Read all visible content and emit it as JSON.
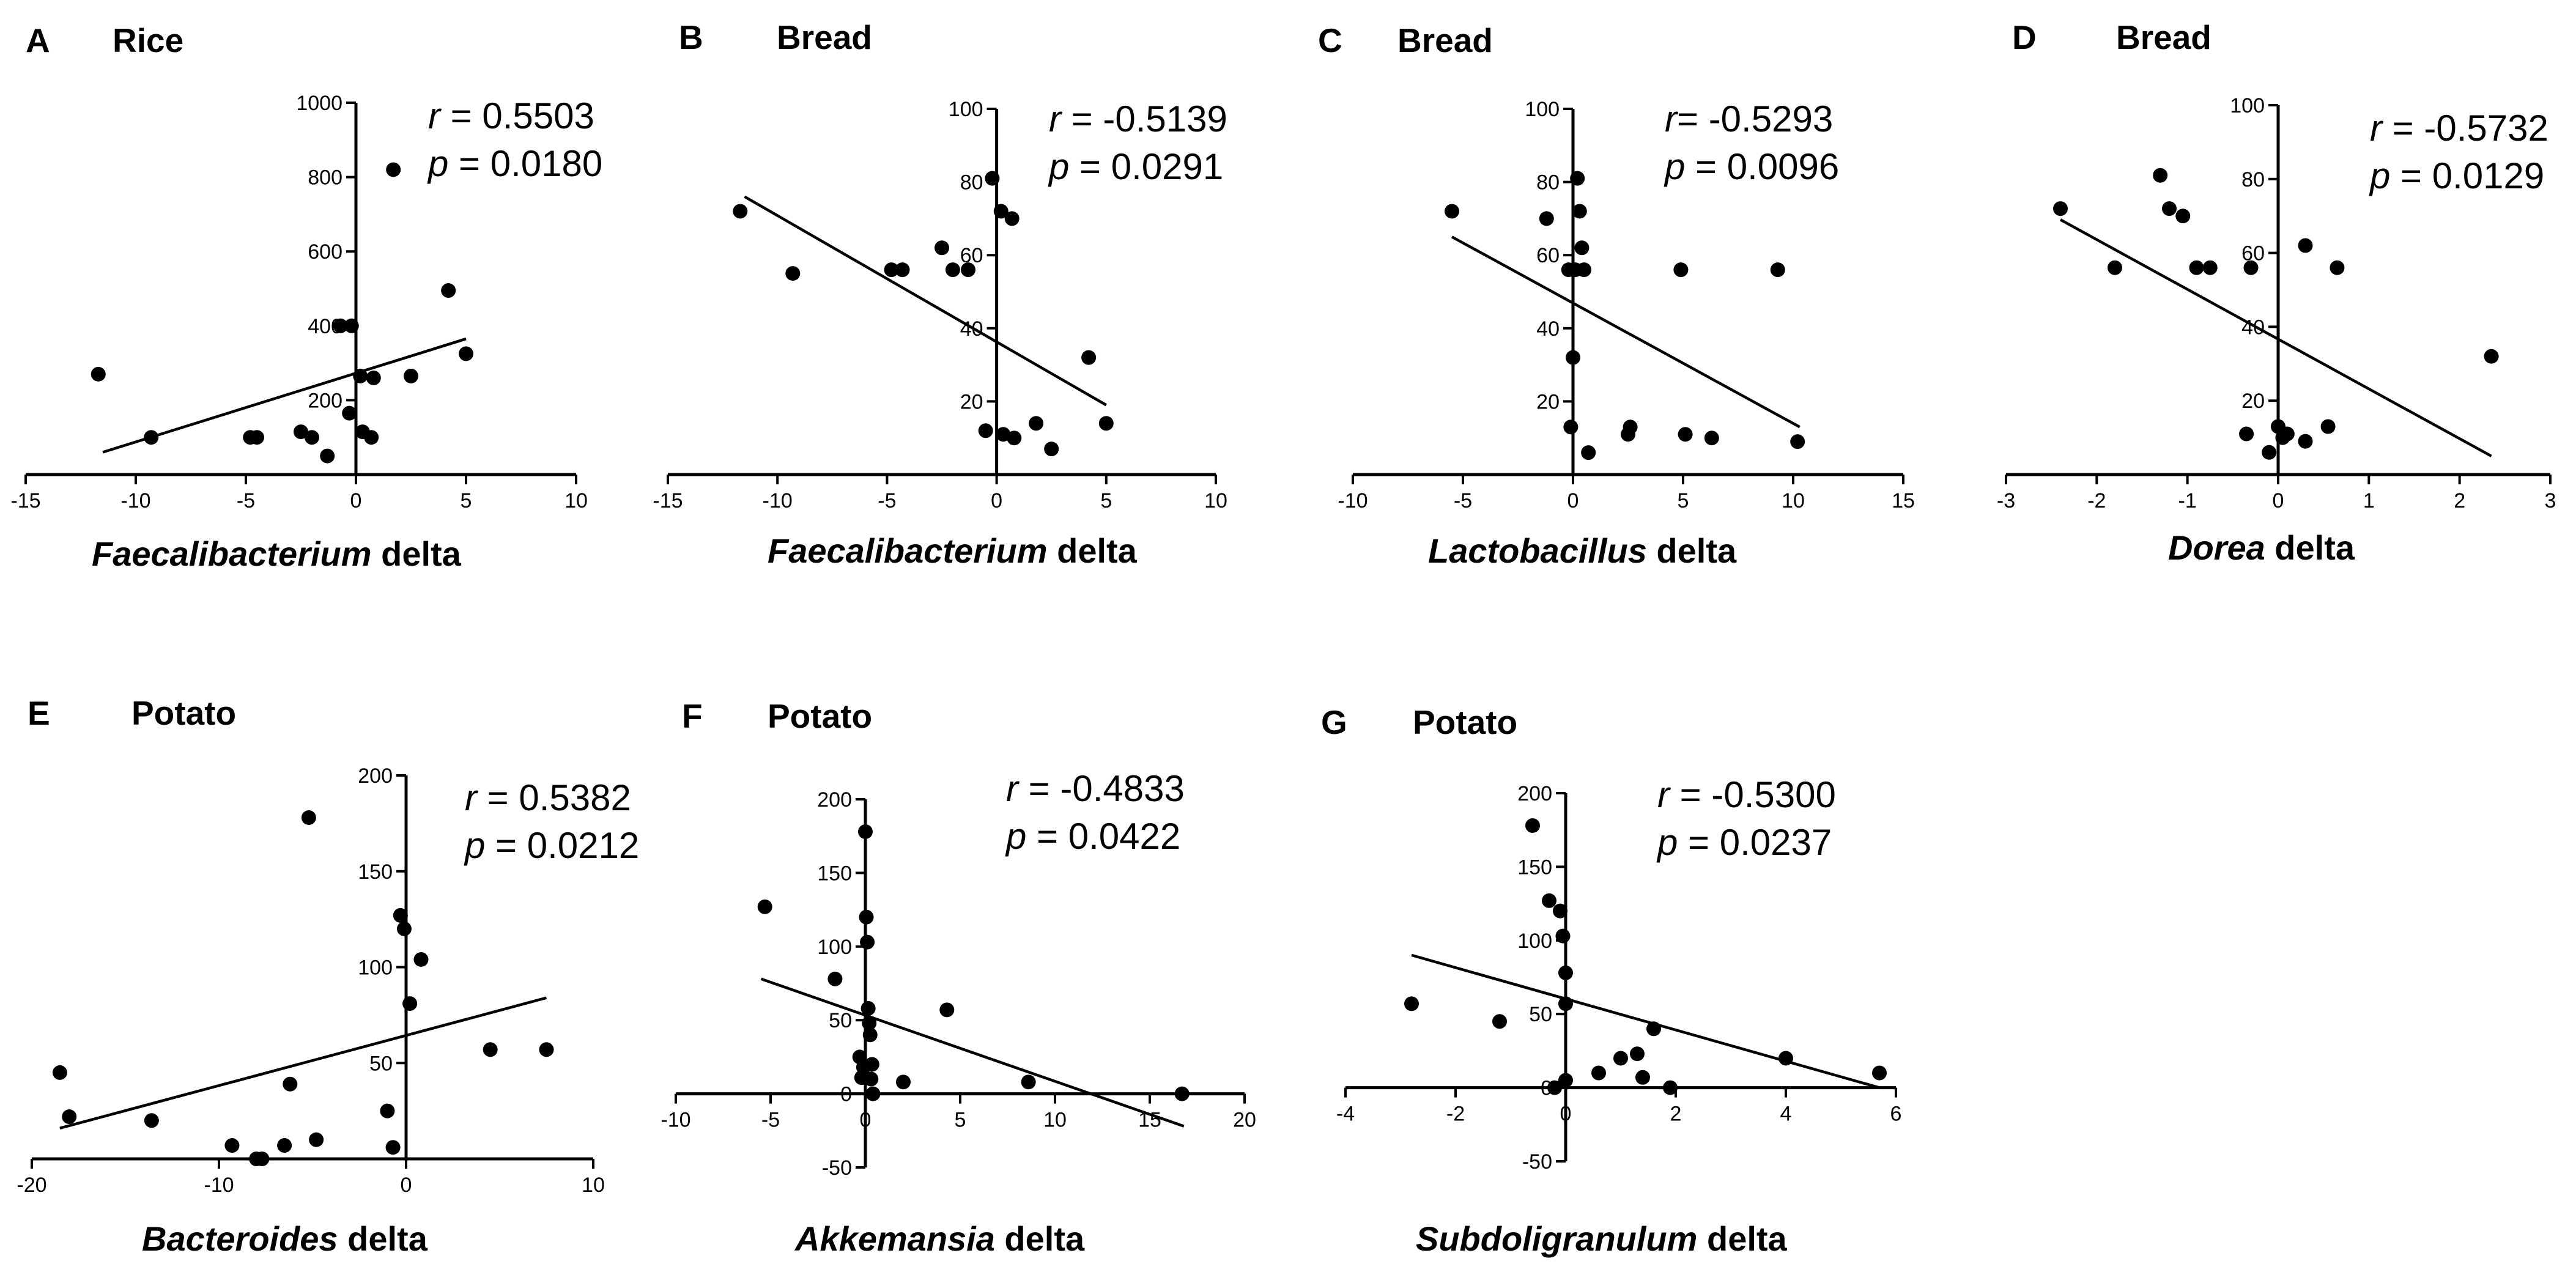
{
  "chart_data": [
    {
      "type": "scatter",
      "panel": "A",
      "title": "Rice",
      "xlabel_italic": "Faecalibacterium",
      "xlabel_rest": " delta",
      "r_label": "r",
      "r_value": " = 0.5503",
      "p_label": "p",
      "p_value": " = 0.0180",
      "xlim": [
        -15,
        10
      ],
      "ylim": [
        0,
        1000
      ],
      "xticks": [
        -15,
        -10,
        -5,
        0,
        5,
        10
      ],
      "yticks": [
        200,
        400,
        600,
        800,
        1000
      ],
      "points": [
        [
          -11.7,
          270
        ],
        [
          -9.3,
          100
        ],
        [
          -4.8,
          100
        ],
        [
          -4.5,
          100
        ],
        [
          -2.5,
          115
        ],
        [
          -2,
          100
        ],
        [
          -1.3,
          50
        ],
        [
          -0.7,
          400
        ],
        [
          -0.2,
          400
        ],
        [
          -0.3,
          165
        ],
        [
          0.2,
          265
        ],
        [
          0.3,
          115
        ],
        [
          0.7,
          100
        ],
        [
          0.8,
          260
        ],
        [
          1.7,
          820
        ],
        [
          2.5,
          265
        ],
        [
          4.2,
          495
        ],
        [
          5,
          325
        ]
      ],
      "fit": [
        [
          -11.5,
          60
        ],
        [
          5,
          365
        ]
      ]
    },
    {
      "type": "scatter",
      "panel": "B",
      "title": "Bread",
      "xlabel_italic": "Faecalibacterium",
      "xlabel_rest": " delta",
      "r_label": "r",
      "r_value": " = -0.5139",
      "p_label": "p",
      "p_value": " = 0.0291",
      "xlim": [
        -15,
        10
      ],
      "ylim": [
        0,
        100
      ],
      "xticks": [
        -15,
        -10,
        -5,
        0,
        5,
        10
      ],
      "yticks": [
        20,
        40,
        60,
        80,
        100
      ],
      "points": [
        [
          -11.7,
          72
        ],
        [
          -9.3,
          55
        ],
        [
          -4.8,
          56
        ],
        [
          -4.3,
          56
        ],
        [
          -2.5,
          62
        ],
        [
          -2,
          56
        ],
        [
          -1.3,
          56
        ],
        [
          -0.5,
          12
        ],
        [
          -0.2,
          81
        ],
        [
          0.2,
          72
        ],
        [
          0.3,
          11
        ],
        [
          0.7,
          70
        ],
        [
          0.8,
          10
        ],
        [
          1.8,
          14
        ],
        [
          2.5,
          7
        ],
        [
          4.2,
          32
        ],
        [
          5,
          14
        ]
      ],
      "fit": [
        [
          -11.5,
          76
        ],
        [
          5,
          19
        ]
      ]
    },
    {
      "type": "scatter",
      "panel": "C",
      "title": "Bread",
      "xlabel_italic": "Lactobacillus",
      "xlabel_rest": " delta",
      "r_label": "r",
      "r_value": "= -0.5293",
      "p_label": "p",
      "p_value": " = 0.0096",
      "xlim": [
        -10,
        15
      ],
      "ylim": [
        0,
        100
      ],
      "xticks": [
        -10,
        -5,
        0,
        5,
        10,
        15
      ],
      "yticks": [
        20,
        40,
        60,
        80,
        100
      ],
      "points": [
        [
          -5.5,
          72
        ],
        [
          -1.2,
          70
        ],
        [
          -0.2,
          56
        ],
        [
          -0.1,
          13
        ],
        [
          0,
          32
        ],
        [
          0.1,
          56
        ],
        [
          0.2,
          81
        ],
        [
          0.3,
          72
        ],
        [
          0.4,
          62
        ],
        [
          0.5,
          56
        ],
        [
          0.7,
          6
        ],
        [
          2.5,
          11
        ],
        [
          2.6,
          13
        ],
        [
          4.9,
          56
        ],
        [
          5.1,
          11
        ],
        [
          6.3,
          10
        ],
        [
          9.3,
          56
        ],
        [
          10.2,
          9
        ]
      ],
      "fit": [
        [
          -5.5,
          65
        ],
        [
          10.3,
          13
        ]
      ]
    },
    {
      "type": "scatter",
      "panel": "D",
      "title": "Bread",
      "xlabel_italic": "Dorea",
      "xlabel_rest": " delta",
      "r_label": "r",
      "r_value": " = -0.5732",
      "p_label": "p",
      "p_value": " = 0.0129",
      "xlim": [
        -3,
        3
      ],
      "ylim": [
        0,
        100
      ],
      "xticks": [
        -3,
        -2,
        -1,
        0,
        1,
        2,
        3
      ],
      "yticks": [
        20,
        40,
        60,
        80,
        100
      ],
      "points": [
        [
          -2.4,
          72
        ],
        [
          -1.8,
          56
        ],
        [
          -1.3,
          81
        ],
        [
          -1.2,
          72
        ],
        [
          -1.05,
          70
        ],
        [
          -0.9,
          56
        ],
        [
          -0.75,
          56
        ],
        [
          -0.35,
          11
        ],
        [
          -0.3,
          56
        ],
        [
          -0.1,
          6
        ],
        [
          0,
          13
        ],
        [
          0.05,
          10
        ],
        [
          0.1,
          11
        ],
        [
          0.3,
          62
        ],
        [
          0.3,
          9
        ],
        [
          0.55,
          13
        ],
        [
          0.65,
          56
        ],
        [
          2.35,
          32
        ]
      ],
      "fit": [
        [
          -2.4,
          69
        ],
        [
          2.35,
          5
        ]
      ]
    },
    {
      "type": "scatter",
      "panel": "E",
      "title": "Potato",
      "xlabel_italic": "Bacteroides",
      "xlabel_rest": " delta",
      "r_label": "r",
      "r_value": " = 0.5382",
      "p_label": "p",
      "p_value": " = 0.0212",
      "xlim": [
        -20,
        10
      ],
      "ylim": [
        0,
        200
      ],
      "xticks": [
        -20,
        -10,
        0,
        10
      ],
      "yticks": [
        50,
        100,
        150,
        200
      ],
      "points": [
        [
          -18.5,
          45
        ],
        [
          -18,
          22
        ],
        [
          -13.6,
          20
        ],
        [
          -9.3,
          7
        ],
        [
          -8,
          0
        ],
        [
          -7.7,
          0
        ],
        [
          -6.5,
          7
        ],
        [
          -6.2,
          39
        ],
        [
          -5.2,
          178
        ],
        [
          -4.8,
          10
        ],
        [
          -1,
          25
        ],
        [
          -0.7,
          6
        ],
        [
          -0.3,
          127
        ],
        [
          -0.1,
          120
        ],
        [
          0.2,
          81
        ],
        [
          0.8,
          104
        ],
        [
          4.5,
          57
        ],
        [
          7.5,
          57
        ]
      ],
      "fit": [
        [
          -18.5,
          16
        ],
        [
          7.5,
          84
        ]
      ]
    },
    {
      "type": "scatter",
      "panel": "F",
      "title": "Potato",
      "xlabel_italic": "Akkemansia",
      "xlabel_rest": " delta",
      "r_label": "r",
      "r_value": " = -0.4833",
      "p_label": "p",
      "p_value": " = 0.0422",
      "xlim": [
        -10,
        20
      ],
      "ylim": [
        -50,
        200
      ],
      "xticks": [
        -10,
        -5,
        0,
        5,
        10,
        15,
        20
      ],
      "yticks": [
        -50,
        0,
        50,
        100,
        150,
        200
      ],
      "points": [
        [
          -5.3,
          127
        ],
        [
          -1.6,
          78
        ],
        [
          -0.3,
          25
        ],
        [
          -0.2,
          11
        ],
        [
          -0.1,
          18
        ],
        [
          0,
          178
        ],
        [
          0.05,
          120
        ],
        [
          0.1,
          103
        ],
        [
          0.15,
          58
        ],
        [
          0.2,
          48
        ],
        [
          0.25,
          40
        ],
        [
          0.3,
          10
        ],
        [
          0.35,
          20
        ],
        [
          0.4,
          0
        ],
        [
          2,
          8
        ],
        [
          4.3,
          57
        ],
        [
          8.6,
          8
        ],
        [
          16.7,
          0
        ]
      ],
      "fit": [
        [
          -5.5,
          78
        ],
        [
          16.8,
          -22
        ]
      ]
    },
    {
      "type": "scatter",
      "panel": "G",
      "title": "Potato",
      "xlabel_italic": "Subdoligranulum",
      "xlabel_rest": " delta",
      "r_label": "r",
      "r_value": " = -0.5300",
      "p_label": "p",
      "p_value": " = 0.0237",
      "xlim": [
        -4,
        6
      ],
      "ylim": [
        -50,
        200
      ],
      "xticks": [
        -4,
        -2,
        0,
        2,
        4,
        6
      ],
      "yticks": [
        -50,
        0,
        50,
        100,
        150,
        200
      ],
      "points": [
        [
          -2.8,
          57
        ],
        [
          -1.2,
          45
        ],
        [
          -0.6,
          178
        ],
        [
          -0.3,
          127
        ],
        [
          -0.2,
          0
        ],
        [
          -0.1,
          120
        ],
        [
          -0.05,
          103
        ],
        [
          0,
          78
        ],
        [
          0,
          57
        ],
        [
          0,
          5
        ],
        [
          0.6,
          10
        ],
        [
          1,
          20
        ],
        [
          1.3,
          23
        ],
        [
          1.4,
          7
        ],
        [
          1.6,
          40
        ],
        [
          1.9,
          0
        ],
        [
          4,
          20
        ],
        [
          5.7,
          10
        ]
      ],
      "fit": [
        [
          -2.8,
          90
        ],
        [
          5.7,
          0
        ]
      ]
    }
  ]
}
